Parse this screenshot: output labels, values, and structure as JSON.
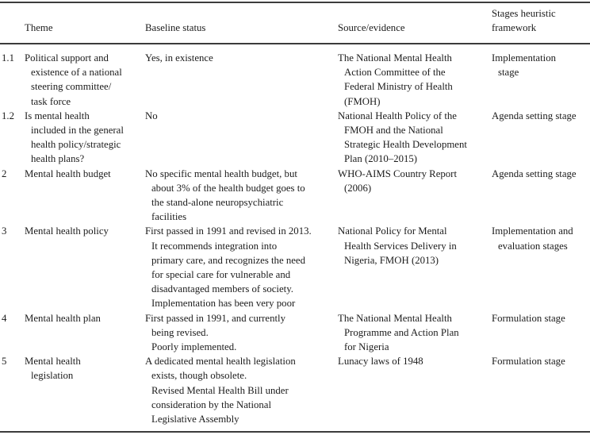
{
  "table": {
    "headers": {
      "num": "",
      "theme": "Theme",
      "baseline": "Baseline status",
      "source": "Source/evidence",
      "stage": [
        "Stages heuristic",
        "framework"
      ]
    },
    "rows": [
      {
        "num": "1.1",
        "theme": [
          "Political support and",
          "existence of a national",
          "steering committee/",
          "task force"
        ],
        "baseline": [
          "Yes, in existence"
        ],
        "source": [
          "The National Mental Health",
          "Action Committee of the",
          "Federal Ministry of Health",
          "(FMOH)"
        ],
        "stage": [
          "Implementation",
          "stage"
        ]
      },
      {
        "num": "1.2",
        "theme": [
          "Is mental health",
          "included in the general",
          "health policy/strategic",
          "health plans?"
        ],
        "baseline": [
          "No"
        ],
        "source": [
          "National Health Policy of the",
          "FMOH and the National",
          "Strategic Health Development",
          "Plan (2010–2015)"
        ],
        "stage": [
          "Agenda setting stage"
        ]
      },
      {
        "num": "2",
        "theme": [
          "Mental health budget"
        ],
        "baseline": [
          "No specific mental health budget, but",
          "about 3% of the health budget goes to",
          "the stand-alone neuropsychiatric",
          "facilities"
        ],
        "source": [
          "WHO-AIMS Country Report",
          "(2006)"
        ],
        "stage": [
          "Agenda setting stage"
        ]
      },
      {
        "num": "3",
        "theme": [
          "Mental health policy"
        ],
        "baseline": [
          "First passed in 1991 and revised in 2013.",
          "It recommends integration into",
          "primary care, and recognizes the need",
          "for special care for vulnerable and",
          "disadvantaged members of society.",
          "Implementation has been very poor"
        ],
        "source": [
          "National Policy for Mental",
          "Health Services Delivery in",
          "Nigeria, FMOH (2013)"
        ],
        "stage": [
          "Implementation and",
          "evaluation stages"
        ]
      },
      {
        "num": "4",
        "theme": [
          "Mental health plan"
        ],
        "baseline": [
          "First passed in 1991, and currently",
          "being revised.",
          "Poorly implemented."
        ],
        "source": [
          "The National Mental Health",
          "Programme and Action Plan",
          "for Nigeria"
        ],
        "stage": [
          "Formulation stage"
        ]
      },
      {
        "num": "5",
        "theme": [
          "Mental health",
          "legislation"
        ],
        "baseline": [
          "A dedicated mental health legislation",
          "exists, though obsolete.",
          "Revised Mental Health Bill under",
          "consideration by the National",
          "Legislative Assembly"
        ],
        "source": [
          "Lunacy laws of 1948"
        ],
        "stage": [
          "Formulation stage"
        ]
      }
    ]
  }
}
